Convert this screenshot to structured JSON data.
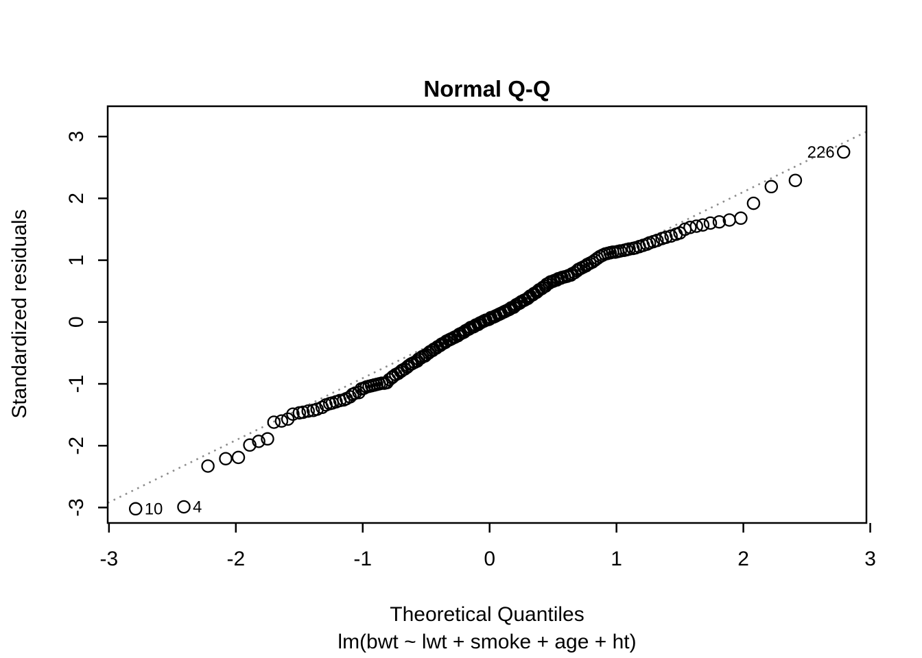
{
  "title": "Normal Q-Q",
  "axis": {
    "x_label": "Theoretical Quantiles",
    "x_sublabel": "lm(bwt ~ lwt + smoke + age + ht)",
    "y_label": "Standardized residuals"
  },
  "colors": {
    "foreground": "#000000",
    "background": "#ffffff",
    "reference_line": "#8c8c8c"
  },
  "chart_data": {
    "type": "scatter",
    "title": "Normal Q-Q",
    "xlabel": "Theoretical Quantiles",
    "sublabel": "lm(bwt ~ lwt + smoke + age + ht)",
    "ylabel": "Standardized residuals",
    "marker": "open-circle",
    "grid": false,
    "xlim": [
      -3.01,
      2.97
    ],
    "ylim": [
      -3.25,
      3.49
    ],
    "x_ticks": [
      -3,
      -2,
      -1,
      0,
      1,
      2,
      3
    ],
    "y_ticks": [
      -3,
      -2,
      -1,
      0,
      1,
      2,
      3
    ],
    "reference_line": {
      "slope": 1.004,
      "intercept": 0.096,
      "style": "dotted",
      "color": "#8c8c8c"
    },
    "labeled_points": [
      {
        "label": "226",
        "x": 2.79,
        "y": 2.75,
        "side": "left"
      },
      {
        "label": "10",
        "x": -2.79,
        "y": -3.02,
        "side": "right"
      },
      {
        "label": "4",
        "x": -2.41,
        "y": -2.99,
        "side": "right"
      }
    ],
    "points": [
      [
        -2.79,
        -3.02
      ],
      [
        -2.41,
        -2.99
      ],
      [
        -2.22,
        -2.33
      ],
      [
        -2.08,
        -2.21
      ],
      [
        -1.98,
        -2.19
      ],
      [
        -1.89,
        -1.99
      ],
      [
        -1.82,
        -1.93
      ],
      [
        -1.75,
        -1.89
      ],
      [
        -1.7,
        -1.62
      ],
      [
        -1.64,
        -1.6
      ],
      [
        -1.59,
        -1.57
      ],
      [
        -1.55,
        -1.49
      ],
      [
        -1.5,
        -1.47
      ],
      [
        -1.47,
        -1.46
      ],
      [
        -1.43,
        -1.44
      ],
      [
        -1.39,
        -1.43
      ],
      [
        -1.36,
        -1.41
      ],
      [
        -1.32,
        -1.38
      ],
      [
        -1.29,
        -1.34
      ],
      [
        -1.26,
        -1.32
      ],
      [
        -1.24,
        -1.31
      ],
      [
        -1.21,
        -1.29
      ],
      [
        -1.18,
        -1.27
      ],
      [
        -1.15,
        -1.26
      ],
      [
        -1.13,
        -1.24
      ],
      [
        -1.1,
        -1.21
      ],
      [
        -1.08,
        -1.17
      ],
      [
        -1.06,
        -1.15
      ],
      [
        -1.03,
        -1.14
      ],
      [
        -1.01,
        -1.08
      ],
      [
        -0.99,
        -1.07
      ],
      [
        -0.97,
        -1.05
      ],
      [
        -0.95,
        -1.04
      ],
      [
        -0.93,
        -1.03
      ],
      [
        -0.91,
        -1.02
      ],
      [
        -0.89,
        -1.01
      ],
      [
        -0.87,
        -1.0
      ],
      [
        -0.85,
        -0.99
      ],
      [
        -0.83,
        -0.99
      ],
      [
        -0.81,
        -0.98
      ],
      [
        -0.79,
        -0.93
      ],
      [
        -0.77,
        -0.9
      ],
      [
        -0.76,
        -0.88
      ],
      [
        -0.74,
        -0.85
      ],
      [
        -0.72,
        -0.83
      ],
      [
        -0.7,
        -0.8
      ],
      [
        -0.69,
        -0.78
      ],
      [
        -0.67,
        -0.76
      ],
      [
        -0.65,
        -0.73
      ],
      [
        -0.64,
        -0.71
      ],
      [
        -0.62,
        -0.68
      ],
      [
        -0.61,
        -0.67
      ],
      [
        -0.59,
        -0.65
      ],
      [
        -0.57,
        -0.63
      ],
      [
        -0.56,
        -0.6
      ],
      [
        -0.54,
        -0.58
      ],
      [
        -0.53,
        -0.56
      ],
      [
        -0.51,
        -0.55
      ],
      [
        -0.5,
        -0.53
      ],
      [
        -0.48,
        -0.5
      ],
      [
        -0.47,
        -0.48
      ],
      [
        -0.45,
        -0.46
      ],
      [
        -0.44,
        -0.44
      ],
      [
        -0.42,
        -0.42
      ],
      [
        -0.41,
        -0.4
      ],
      [
        -0.39,
        -0.38
      ],
      [
        -0.38,
        -0.36
      ],
      [
        -0.37,
        -0.35
      ],
      [
        -0.35,
        -0.33
      ],
      [
        -0.34,
        -0.31
      ],
      [
        -0.32,
        -0.29
      ],
      [
        -0.31,
        -0.28
      ],
      [
        -0.3,
        -0.27
      ],
      [
        -0.28,
        -0.25
      ],
      [
        -0.27,
        -0.24
      ],
      [
        -0.25,
        -0.22
      ],
      [
        -0.24,
        -0.2
      ],
      [
        -0.23,
        -0.19
      ],
      [
        -0.21,
        -0.17
      ],
      [
        -0.2,
        -0.16
      ],
      [
        -0.19,
        -0.14
      ],
      [
        -0.17,
        -0.12
      ],
      [
        -0.16,
        -0.11
      ],
      [
        -0.15,
        -0.09
      ],
      [
        -0.13,
        -0.08
      ],
      [
        -0.12,
        -0.07
      ],
      [
        -0.11,
        -0.05
      ],
      [
        -0.09,
        -0.04
      ],
      [
        -0.08,
        -0.02
      ],
      [
        -0.07,
        -0.01
      ],
      [
        -0.05,
        0.01
      ],
      [
        -0.04,
        0.02
      ],
      [
        -0.03,
        0.03
      ],
      [
        -0.01,
        0.04
      ],
      [
        0.0,
        0.05
      ],
      [
        0.01,
        0.07
      ],
      [
        0.03,
        0.08
      ],
      [
        0.04,
        0.09
      ],
      [
        0.05,
        0.1
      ],
      [
        0.07,
        0.12
      ],
      [
        0.08,
        0.13
      ],
      [
        0.09,
        0.14
      ],
      [
        0.11,
        0.16
      ],
      [
        0.12,
        0.17
      ],
      [
        0.13,
        0.18
      ],
      [
        0.15,
        0.2
      ],
      [
        0.16,
        0.21
      ],
      [
        0.17,
        0.23
      ],
      [
        0.19,
        0.24
      ],
      [
        0.2,
        0.26
      ],
      [
        0.21,
        0.28
      ],
      [
        0.23,
        0.3
      ],
      [
        0.24,
        0.31
      ],
      [
        0.25,
        0.33
      ],
      [
        0.27,
        0.35
      ],
      [
        0.28,
        0.36
      ],
      [
        0.3,
        0.38
      ],
      [
        0.31,
        0.4
      ],
      [
        0.32,
        0.42
      ],
      [
        0.34,
        0.44
      ],
      [
        0.35,
        0.46
      ],
      [
        0.37,
        0.48
      ],
      [
        0.38,
        0.5
      ],
      [
        0.39,
        0.52
      ],
      [
        0.41,
        0.54
      ],
      [
        0.42,
        0.56
      ],
      [
        0.44,
        0.58
      ],
      [
        0.45,
        0.61
      ],
      [
        0.47,
        0.63
      ],
      [
        0.48,
        0.65
      ],
      [
        0.5,
        0.66
      ],
      [
        0.51,
        0.67
      ],
      [
        0.53,
        0.68
      ],
      [
        0.54,
        0.7
      ],
      [
        0.56,
        0.71
      ],
      [
        0.57,
        0.72
      ],
      [
        0.59,
        0.73
      ],
      [
        0.61,
        0.74
      ],
      [
        0.62,
        0.75
      ],
      [
        0.64,
        0.76
      ],
      [
        0.65,
        0.78
      ],
      [
        0.67,
        0.8
      ],
      [
        0.69,
        0.83
      ],
      [
        0.7,
        0.85
      ],
      [
        0.72,
        0.87
      ],
      [
        0.74,
        0.89
      ],
      [
        0.76,
        0.91
      ],
      [
        0.77,
        0.93
      ],
      [
        0.79,
        0.95
      ],
      [
        0.81,
        0.97
      ],
      [
        0.83,
        1.0
      ],
      [
        0.85,
        1.03
      ],
      [
        0.87,
        1.06
      ],
      [
        0.89,
        1.08
      ],
      [
        0.91,
        1.1
      ],
      [
        0.93,
        1.11
      ],
      [
        0.95,
        1.12
      ],
      [
        0.97,
        1.13
      ],
      [
        0.99,
        1.13
      ],
      [
        1.01,
        1.14
      ],
      [
        1.03,
        1.15
      ],
      [
        1.06,
        1.16
      ],
      [
        1.08,
        1.17
      ],
      [
        1.1,
        1.18
      ],
      [
        1.13,
        1.19
      ],
      [
        1.15,
        1.2
      ],
      [
        1.18,
        1.22
      ],
      [
        1.21,
        1.24
      ],
      [
        1.24,
        1.26
      ],
      [
        1.26,
        1.28
      ],
      [
        1.29,
        1.3
      ],
      [
        1.32,
        1.32
      ],
      [
        1.36,
        1.35
      ],
      [
        1.39,
        1.37
      ],
      [
        1.43,
        1.39
      ],
      [
        1.47,
        1.42
      ],
      [
        1.5,
        1.44
      ],
      [
        1.54,
        1.5
      ],
      [
        1.58,
        1.53
      ],
      [
        1.63,
        1.55
      ],
      [
        1.68,
        1.57
      ],
      [
        1.74,
        1.6
      ],
      [
        1.81,
        1.62
      ],
      [
        1.89,
        1.65
      ],
      [
        1.98,
        1.68
      ],
      [
        2.08,
        1.92
      ],
      [
        2.22,
        2.19
      ],
      [
        2.41,
        2.29
      ],
      [
        2.79,
        2.75
      ]
    ]
  }
}
